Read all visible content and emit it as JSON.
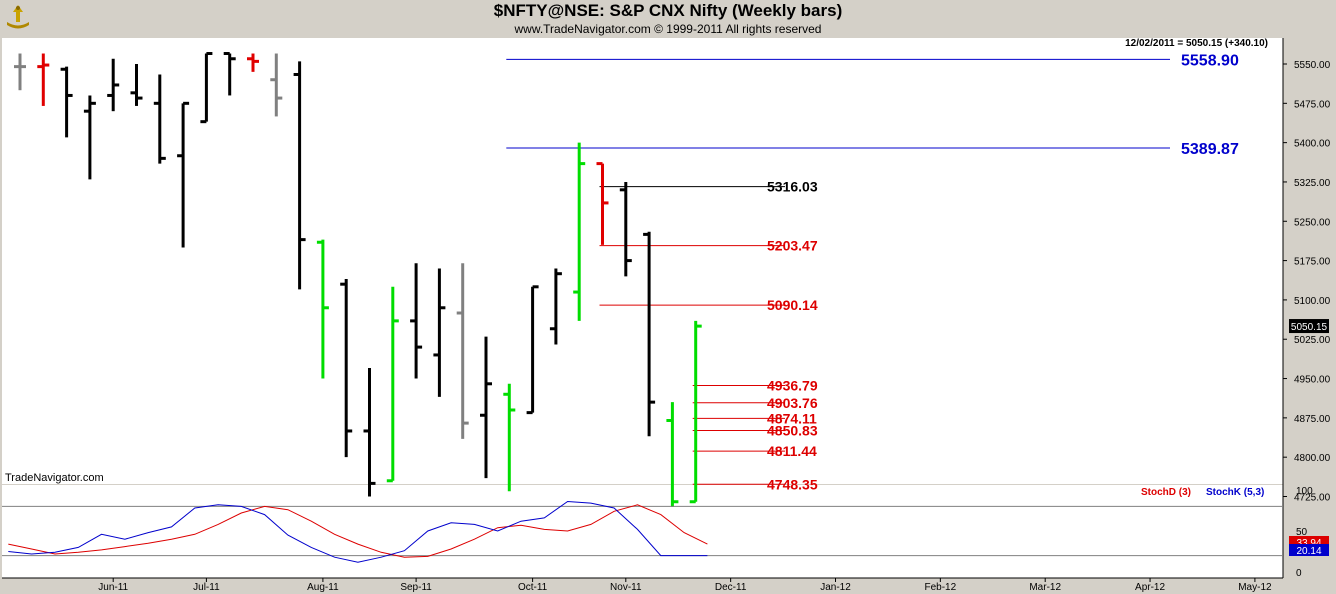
{
  "header": {
    "title": "$NFTY@NSE:  S&P CNX Nifty  (Weekly bars)",
    "copyright": "www.TradeNavigator.com © 1999-2011 All rights reserved"
  },
  "chart_data": [
    {
      "type": "ohlc",
      "status_text": "12/02/2011 = 5050.15 (+340.10)",
      "watermark": "TradeNavigator.com",
      "last_price_label": "5050.15",
      "ylim": [
        4700,
        5570
      ],
      "y_ticks": [
        5550.0,
        5475.0,
        5400.0,
        5325.0,
        5250.0,
        5175.0,
        5100.0,
        5025.0,
        4950.0,
        4875.0,
        4800.0,
        4725.0
      ],
      "y_tick_labels": [
        "5550.00",
        "5475.00",
        "5400.00",
        "5325.00",
        "5250.00",
        "5175.00",
        "5100.00",
        "5025.00",
        "4950.00",
        "4875.00",
        "4800.00",
        "4725.00"
      ],
      "x_ticks": [
        {
          "label": "Jun-11",
          "slot": 4
        },
        {
          "label": "Jul-11",
          "slot": 8
        },
        {
          "label": "Aug-11",
          "slot": 13
        },
        {
          "label": "Sep-11",
          "slot": 17
        },
        {
          "label": "Oct-11",
          "slot": 22
        },
        {
          "label": "Nov-11",
          "slot": 26
        },
        {
          "label": "Dec-11",
          "slot": 30.5
        },
        {
          "label": "Jan-12",
          "slot": 35
        },
        {
          "label": "Feb-12",
          "slot": 39.5
        },
        {
          "label": "Mar-12",
          "slot": 44
        },
        {
          "label": "Apr-12",
          "slot": 48.5
        },
        {
          "label": "May-12",
          "slot": 53
        }
      ],
      "bars": [
        {
          "o": 5545,
          "h": 5570,
          "l": 5500,
          "c": 5545,
          "color": "gray"
        },
        {
          "o": 5545,
          "h": 5570,
          "l": 5470,
          "c": 5548,
          "color": "red"
        },
        {
          "o": 5540,
          "h": 5545,
          "l": 5410,
          "c": 5490,
          "color": "black"
        },
        {
          "o": 5460,
          "h": 5490,
          "l": 5330,
          "c": 5475,
          "color": "black"
        },
        {
          "o": 5490,
          "h": 5560,
          "l": 5460,
          "c": 5510,
          "color": "black"
        },
        {
          "o": 5495,
          "h": 5550,
          "l": 5470,
          "c": 5485,
          "color": "black"
        },
        {
          "o": 5475,
          "h": 5530,
          "l": 5360,
          "c": 5370,
          "color": "black"
        },
        {
          "o": 5375,
          "h": 5475,
          "l": 5200,
          "c": 5475,
          "color": "black"
        },
        {
          "o": 5440,
          "h": 5570,
          "l": 5440,
          "c": 5570,
          "color": "black"
        },
        {
          "o": 5570,
          "h": 5570,
          "l": 5490,
          "c": 5560,
          "color": "black"
        },
        {
          "o": 5560,
          "h": 5570,
          "l": 5535,
          "c": 5555,
          "color": "red"
        },
        {
          "o": 5520,
          "h": 5570,
          "l": 5450,
          "c": 5485,
          "color": "gray"
        },
        {
          "o": 5530,
          "h": 5555,
          "l": 5120,
          "c": 5215,
          "color": "black"
        },
        {
          "o": 5210,
          "h": 5215,
          "l": 4950,
          "c": 5085,
          "color": "green"
        },
        {
          "o": 5130,
          "h": 5140,
          "l": 4800,
          "c": 4850,
          "color": "black"
        },
        {
          "o": 4850,
          "h": 4970,
          "l": 4725,
          "c": 4750,
          "color": "black"
        },
        {
          "o": 4755,
          "h": 5125,
          "l": 4755,
          "c": 5060,
          "color": "green"
        },
        {
          "o": 5060,
          "h": 5170,
          "l": 4950,
          "c": 5010,
          "color": "black"
        },
        {
          "o": 4995,
          "h": 5160,
          "l": 4915,
          "c": 5085,
          "color": "black"
        },
        {
          "o": 5075,
          "h": 5170,
          "l": 4835,
          "c": 4865,
          "color": "gray"
        },
        {
          "o": 4880,
          "h": 5030,
          "l": 4760,
          "c": 4940,
          "color": "black"
        },
        {
          "o": 4920,
          "h": 4940,
          "l": 4735,
          "c": 4890,
          "color": "green"
        },
        {
          "o": 4885,
          "h": 5125,
          "l": 4885,
          "c": 5125,
          "color": "black"
        },
        {
          "o": 5045,
          "h": 5160,
          "l": 5015,
          "c": 5150,
          "color": "black"
        },
        {
          "o": 5115,
          "h": 5400,
          "l": 5060,
          "c": 5360,
          "color": "green"
        },
        {
          "o": 5360,
          "h": 5360,
          "l": 5205,
          "c": 5285,
          "color": "red"
        },
        {
          "o": 5310,
          "h": 5325,
          "l": 5145,
          "c": 5175,
          "color": "black"
        },
        {
          "o": 5225,
          "h": 5230,
          "l": 4840,
          "c": 4905,
          "color": "black"
        },
        {
          "o": 4870,
          "h": 4905,
          "l": 4705,
          "c": 4715,
          "color": "green"
        },
        {
          "o": 4715,
          "h": 5060,
          "l": 4715,
          "c": 5050,
          "color": "green"
        }
      ],
      "levels": [
        {
          "value": 5558.9,
          "label": "5558.90",
          "color": "#0000cc",
          "from_slot": 21
        },
        {
          "value": 5389.87,
          "label": "5389.87",
          "color": "#0000cc",
          "from_slot": 21
        },
        {
          "value": 5316.03,
          "label": "5316.03",
          "color": "#000000",
          "from_slot": 25
        },
        {
          "value": 5203.47,
          "label": "5203.47",
          "color": "#dd0000",
          "from_slot": 25
        },
        {
          "value": 5090.14,
          "label": "5090.14",
          "color": "#dd0000",
          "from_slot": 25
        },
        {
          "value": 4936.79,
          "label": "4936.79",
          "color": "#dd0000",
          "from_slot": 29
        },
        {
          "value": 4903.76,
          "label": "4903.76",
          "color": "#dd0000",
          "from_slot": 29
        },
        {
          "value": 4874.11,
          "label": "4874.11",
          "color": "#dd0000",
          "from_slot": 29
        },
        {
          "value": 4850.83,
          "label": "4850.83",
          "color": "#dd0000",
          "from_slot": 29
        },
        {
          "value": 4811.44,
          "label": "4811.44",
          "color": "#dd0000",
          "from_slot": 29
        },
        {
          "value": 4748.35,
          "label": "4748.35",
          "color": "#dd0000",
          "from_slot": 29
        }
      ]
    },
    {
      "type": "line",
      "legend": [
        {
          "name": "StochD (3)",
          "color": "#dd0000"
        },
        {
          "name": "StochK (5,3)",
          "color": "#0000cc"
        }
      ],
      "ylim": [
        0,
        100
      ],
      "y_ticks": [
        100,
        50,
        0
      ],
      "reference_lines": [
        80,
        20
      ],
      "last_values": [
        {
          "label": "33.94",
          "color": "#dd0000"
        },
        {
          "label": "20.14",
          "color": "#0000cc"
        }
      ],
      "series": [
        {
          "name": "StochD (3)",
          "color": "#dd0000",
          "values": [
            34,
            28,
            22,
            24,
            27,
            31,
            35,
            40,
            46,
            58,
            72,
            80,
            76,
            62,
            46,
            34,
            24,
            18,
            19,
            28,
            40,
            54,
            57,
            52,
            50,
            58,
            74,
            82,
            70,
            48,
            34
          ]
        },
        {
          "name": "StochK (5,3)",
          "color": "#0000cc",
          "values": [
            25,
            22,
            24,
            30,
            46,
            40,
            48,
            55,
            78,
            82,
            80,
            70,
            45,
            30,
            18,
            12,
            18,
            26,
            50,
            60,
            58,
            50,
            62,
            66,
            86,
            84,
            78,
            52,
            20,
            20,
            20
          ]
        }
      ]
    }
  ]
}
